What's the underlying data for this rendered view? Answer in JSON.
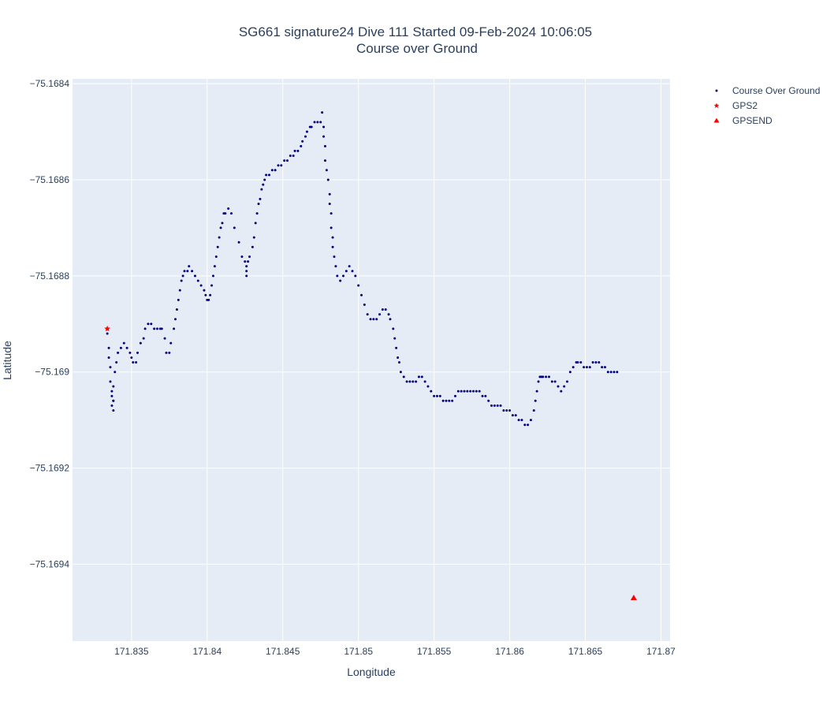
{
  "chart_data": {
    "type": "scatter",
    "title": "SG661 signature24 Dive 111 Started 09-Feb-2024 10:06:05",
    "subtitle": "Course over Ground",
    "xlabel": "Longitude",
    "ylabel": "Latitude",
    "xlim": [
      171.8311,
      171.8706
    ],
    "ylim": [
      -75.16956,
      -75.16839
    ],
    "x_ticks": [
      171.835,
      171.84,
      171.845,
      171.85,
      171.855,
      171.86,
      171.865,
      171.87
    ],
    "x_tick_labels": [
      "171.835",
      "171.84",
      "171.845",
      "171.85",
      "171.855",
      "171.86",
      "171.865",
      "171.87"
    ],
    "y_ticks": [
      -75.1684,
      -75.1686,
      -75.1688,
      -75.169,
      -75.1692,
      -75.1694
    ],
    "y_tick_labels": [
      "−75.1684",
      "−75.1686",
      "−75.1688",
      "−75.169",
      "−75.1692",
      "−75.1694"
    ],
    "grid": true,
    "legend_position": "top-right",
    "background_color": "#e5ecf6",
    "series": [
      {
        "name": "Course Over Ground",
        "marker": "circle",
        "color": "#000080",
        "points": [
          [
            171.8334,
            -75.16892
          ],
          [
            171.8335,
            -75.16895
          ],
          [
            171.8335,
            -75.16897
          ],
          [
            171.8336,
            -75.16899
          ],
          [
            171.8336,
            -75.16902
          ],
          [
            171.8337,
            -75.16904
          ],
          [
            171.8337,
            -75.16905
          ],
          [
            171.8338,
            -75.16906
          ],
          [
            171.8337,
            -75.16907
          ],
          [
            171.8338,
            -75.16908
          ],
          [
            171.8338,
            -75.16906
          ],
          [
            171.8338,
            -75.16903
          ],
          [
            171.8339,
            -75.169
          ],
          [
            171.834,
            -75.16898
          ],
          [
            171.8341,
            -75.16896
          ],
          [
            171.8343,
            -75.16895
          ],
          [
            171.8345,
            -75.16894
          ],
          [
            171.8347,
            -75.16895
          ],
          [
            171.8349,
            -75.16896
          ],
          [
            171.835,
            -75.16897
          ],
          [
            171.8351,
            -75.16898
          ],
          [
            171.8353,
            -75.16898
          ],
          [
            171.8354,
            -75.16896
          ],
          [
            171.8356,
            -75.16894
          ],
          [
            171.8358,
            -75.16893
          ],
          [
            171.8359,
            -75.16891
          ],
          [
            171.8361,
            -75.1689
          ],
          [
            171.8363,
            -75.1689
          ],
          [
            171.8365,
            -75.16891
          ],
          [
            171.8367,
            -75.16891
          ],
          [
            171.8369,
            -75.16891
          ],
          [
            171.837,
            -75.16891
          ],
          [
            171.8372,
            -75.16893
          ],
          [
            171.8373,
            -75.16896
          ],
          [
            171.8375,
            -75.16896
          ],
          [
            171.8376,
            -75.16894
          ],
          [
            171.8378,
            -75.16891
          ],
          [
            171.8379,
            -75.16889
          ],
          [
            171.838,
            -75.16887
          ],
          [
            171.8381,
            -75.16885
          ],
          [
            171.8382,
            -75.16883
          ],
          [
            171.8383,
            -75.16881
          ],
          [
            171.8384,
            -75.1688
          ],
          [
            171.8385,
            -75.16879
          ],
          [
            171.8387,
            -75.16879
          ],
          [
            171.8388,
            -75.16878
          ],
          [
            171.839,
            -75.16879
          ],
          [
            171.8392,
            -75.1688
          ],
          [
            171.8394,
            -75.16881
          ],
          [
            171.8396,
            -75.16882
          ],
          [
            171.8398,
            -75.16883
          ],
          [
            171.8399,
            -75.16884
          ],
          [
            171.84,
            -75.16885
          ],
          [
            171.8401,
            -75.16885
          ],
          [
            171.8402,
            -75.16884
          ],
          [
            171.8403,
            -75.16882
          ],
          [
            171.8404,
            -75.1688
          ],
          [
            171.8405,
            -75.16878
          ],
          [
            171.8406,
            -75.16876
          ],
          [
            171.8407,
            -75.16874
          ],
          [
            171.8408,
            -75.16872
          ],
          [
            171.8409,
            -75.1687
          ],
          [
            171.841,
            -75.16869
          ],
          [
            171.8411,
            -75.16867
          ],
          [
            171.8412,
            -75.16867
          ],
          [
            171.8414,
            -75.16866
          ],
          [
            171.8416,
            -75.16867
          ],
          [
            171.8418,
            -75.1687
          ],
          [
            171.8421,
            -75.16873
          ],
          [
            171.8423,
            -75.16876
          ],
          [
            171.8425,
            -75.16877
          ],
          [
            171.8426,
            -75.16878
          ],
          [
            171.8426,
            -75.16879
          ],
          [
            171.8426,
            -75.1688
          ],
          [
            171.8427,
            -75.16877
          ],
          [
            171.8428,
            -75.16876
          ],
          [
            171.843,
            -75.16874
          ],
          [
            171.8431,
            -75.16872
          ],
          [
            171.8432,
            -75.16869
          ],
          [
            171.8433,
            -75.16867
          ],
          [
            171.8434,
            -75.16865
          ],
          [
            171.8435,
            -75.16864
          ],
          [
            171.8436,
            -75.16862
          ],
          [
            171.8437,
            -75.16861
          ],
          [
            171.8438,
            -75.1686
          ],
          [
            171.8439,
            -75.16859
          ],
          [
            171.8441,
            -75.16859
          ],
          [
            171.8443,
            -75.16858
          ],
          [
            171.8445,
            -75.16858
          ],
          [
            171.8447,
            -75.16857
          ],
          [
            171.8449,
            -75.16857
          ],
          [
            171.8451,
            -75.16856
          ],
          [
            171.8453,
            -75.16856
          ],
          [
            171.8455,
            -75.16855
          ],
          [
            171.8457,
            -75.16855
          ],
          [
            171.8458,
            -75.16854
          ],
          [
            171.846,
            -75.16854
          ],
          [
            171.8462,
            -75.16853
          ],
          [
            171.8463,
            -75.16852
          ],
          [
            171.8465,
            -75.16851
          ],
          [
            171.8466,
            -75.1685
          ],
          [
            171.8468,
            -75.16849
          ],
          [
            171.8469,
            -75.16849
          ],
          [
            171.8471,
            -75.16848
          ],
          [
            171.8473,
            -75.16848
          ],
          [
            171.8475,
            -75.16848
          ],
          [
            171.8476,
            -75.16846
          ],
          [
            171.8477,
            -75.16849
          ],
          [
            171.8477,
            -75.16851
          ],
          [
            171.8478,
            -75.16853
          ],
          [
            171.8478,
            -75.16856
          ],
          [
            171.8479,
            -75.16858
          ],
          [
            171.848,
            -75.1686
          ],
          [
            171.8481,
            -75.16863
          ],
          [
            171.8481,
            -75.16865
          ],
          [
            171.8482,
            -75.16867
          ],
          [
            171.8482,
            -75.1687
          ],
          [
            171.8483,
            -75.16872
          ],
          [
            171.8483,
            -75.16874
          ],
          [
            171.8484,
            -75.16876
          ],
          [
            171.8485,
            -75.16878
          ],
          [
            171.8486,
            -75.1688
          ],
          [
            171.8488,
            -75.16881
          ],
          [
            171.849,
            -75.1688
          ],
          [
            171.8492,
            -75.16879
          ],
          [
            171.8494,
            -75.16878
          ],
          [
            171.8496,
            -75.16879
          ],
          [
            171.8498,
            -75.1688
          ],
          [
            171.85,
            -75.16882
          ],
          [
            171.8502,
            -75.16884
          ],
          [
            171.8504,
            -75.16886
          ],
          [
            171.8506,
            -75.16888
          ],
          [
            171.8508,
            -75.16889
          ],
          [
            171.851,
            -75.16889
          ],
          [
            171.8512,
            -75.16889
          ],
          [
            171.8514,
            -75.16888
          ],
          [
            171.8516,
            -75.16887
          ],
          [
            171.8518,
            -75.16887
          ],
          [
            171.852,
            -75.16888
          ],
          [
            171.8521,
            -75.16889
          ],
          [
            171.8523,
            -75.16891
          ],
          [
            171.8524,
            -75.16893
          ],
          [
            171.8525,
            -75.16895
          ],
          [
            171.8526,
            -75.16897
          ],
          [
            171.8527,
            -75.16898
          ],
          [
            171.8528,
            -75.169
          ],
          [
            171.853,
            -75.16901
          ],
          [
            171.8532,
            -75.16902
          ],
          [
            171.8534,
            -75.16902
          ],
          [
            171.8536,
            -75.16902
          ],
          [
            171.8538,
            -75.16902
          ],
          [
            171.854,
            -75.16901
          ],
          [
            171.8542,
            -75.16901
          ],
          [
            171.8544,
            -75.16902
          ],
          [
            171.8546,
            -75.16903
          ],
          [
            171.8548,
            -75.16904
          ],
          [
            171.855,
            -75.16905
          ],
          [
            171.8552,
            -75.16905
          ],
          [
            171.8554,
            -75.16905
          ],
          [
            171.8556,
            -75.16906
          ],
          [
            171.8558,
            -75.16906
          ],
          [
            171.856,
            -75.16906
          ],
          [
            171.8562,
            -75.16906
          ],
          [
            171.8564,
            -75.16905
          ],
          [
            171.8566,
            -75.16904
          ],
          [
            171.8568,
            -75.16904
          ],
          [
            171.857,
            -75.16904
          ],
          [
            171.8572,
            -75.16904
          ],
          [
            171.8574,
            -75.16904
          ],
          [
            171.8576,
            -75.16904
          ],
          [
            171.8578,
            -75.16904
          ],
          [
            171.858,
            -75.16904
          ],
          [
            171.8582,
            -75.16905
          ],
          [
            171.8584,
            -75.16905
          ],
          [
            171.8586,
            -75.16906
          ],
          [
            171.8588,
            -75.16907
          ],
          [
            171.859,
            -75.16907
          ],
          [
            171.8592,
            -75.16907
          ],
          [
            171.8594,
            -75.16907
          ],
          [
            171.8596,
            -75.16908
          ],
          [
            171.8598,
            -75.16908
          ],
          [
            171.86,
            -75.16908
          ],
          [
            171.8602,
            -75.16909
          ],
          [
            171.8604,
            -75.16909
          ],
          [
            171.8606,
            -75.1691
          ],
          [
            171.8608,
            -75.1691
          ],
          [
            171.861,
            -75.16911
          ],
          [
            171.8612,
            -75.16911
          ],
          [
            171.8614,
            -75.1691
          ],
          [
            171.8616,
            -75.16908
          ],
          [
            171.8617,
            -75.16906
          ],
          [
            171.8618,
            -75.16904
          ],
          [
            171.8619,
            -75.16902
          ],
          [
            171.862,
            -75.16901
          ],
          [
            171.8621,
            -75.16901
          ],
          [
            171.8622,
            -75.16901
          ],
          [
            171.8624,
            -75.16901
          ],
          [
            171.8626,
            -75.16901
          ],
          [
            171.8628,
            -75.16902
          ],
          [
            171.863,
            -75.16902
          ],
          [
            171.8632,
            -75.16903
          ],
          [
            171.8634,
            -75.16904
          ],
          [
            171.8636,
            -75.16903
          ],
          [
            171.8638,
            -75.16902
          ],
          [
            171.864,
            -75.169
          ],
          [
            171.8642,
            -75.16899
          ],
          [
            171.8644,
            -75.16898
          ],
          [
            171.8645,
            -75.16898
          ],
          [
            171.8647,
            -75.16898
          ],
          [
            171.8649,
            -75.16899
          ],
          [
            171.8651,
            -75.16899
          ],
          [
            171.8653,
            -75.16899
          ],
          [
            171.8655,
            -75.16898
          ],
          [
            171.8657,
            -75.16898
          ],
          [
            171.8659,
            -75.16898
          ],
          [
            171.8661,
            -75.16899
          ],
          [
            171.8663,
            -75.16899
          ],
          [
            171.8665,
            -75.169
          ],
          [
            171.8667,
            -75.169
          ],
          [
            171.8669,
            -75.169
          ],
          [
            171.8671,
            -75.169
          ]
        ]
      },
      {
        "name": "GPS2",
        "marker": "star",
        "color": "#ff0000",
        "points": [
          [
            171.8334,
            -75.16891
          ]
        ]
      },
      {
        "name": "GPSEND",
        "marker": "triangle-up",
        "color": "#ff0000",
        "points": [
          [
            171.8682,
            -75.16947
          ]
        ]
      }
    ]
  }
}
